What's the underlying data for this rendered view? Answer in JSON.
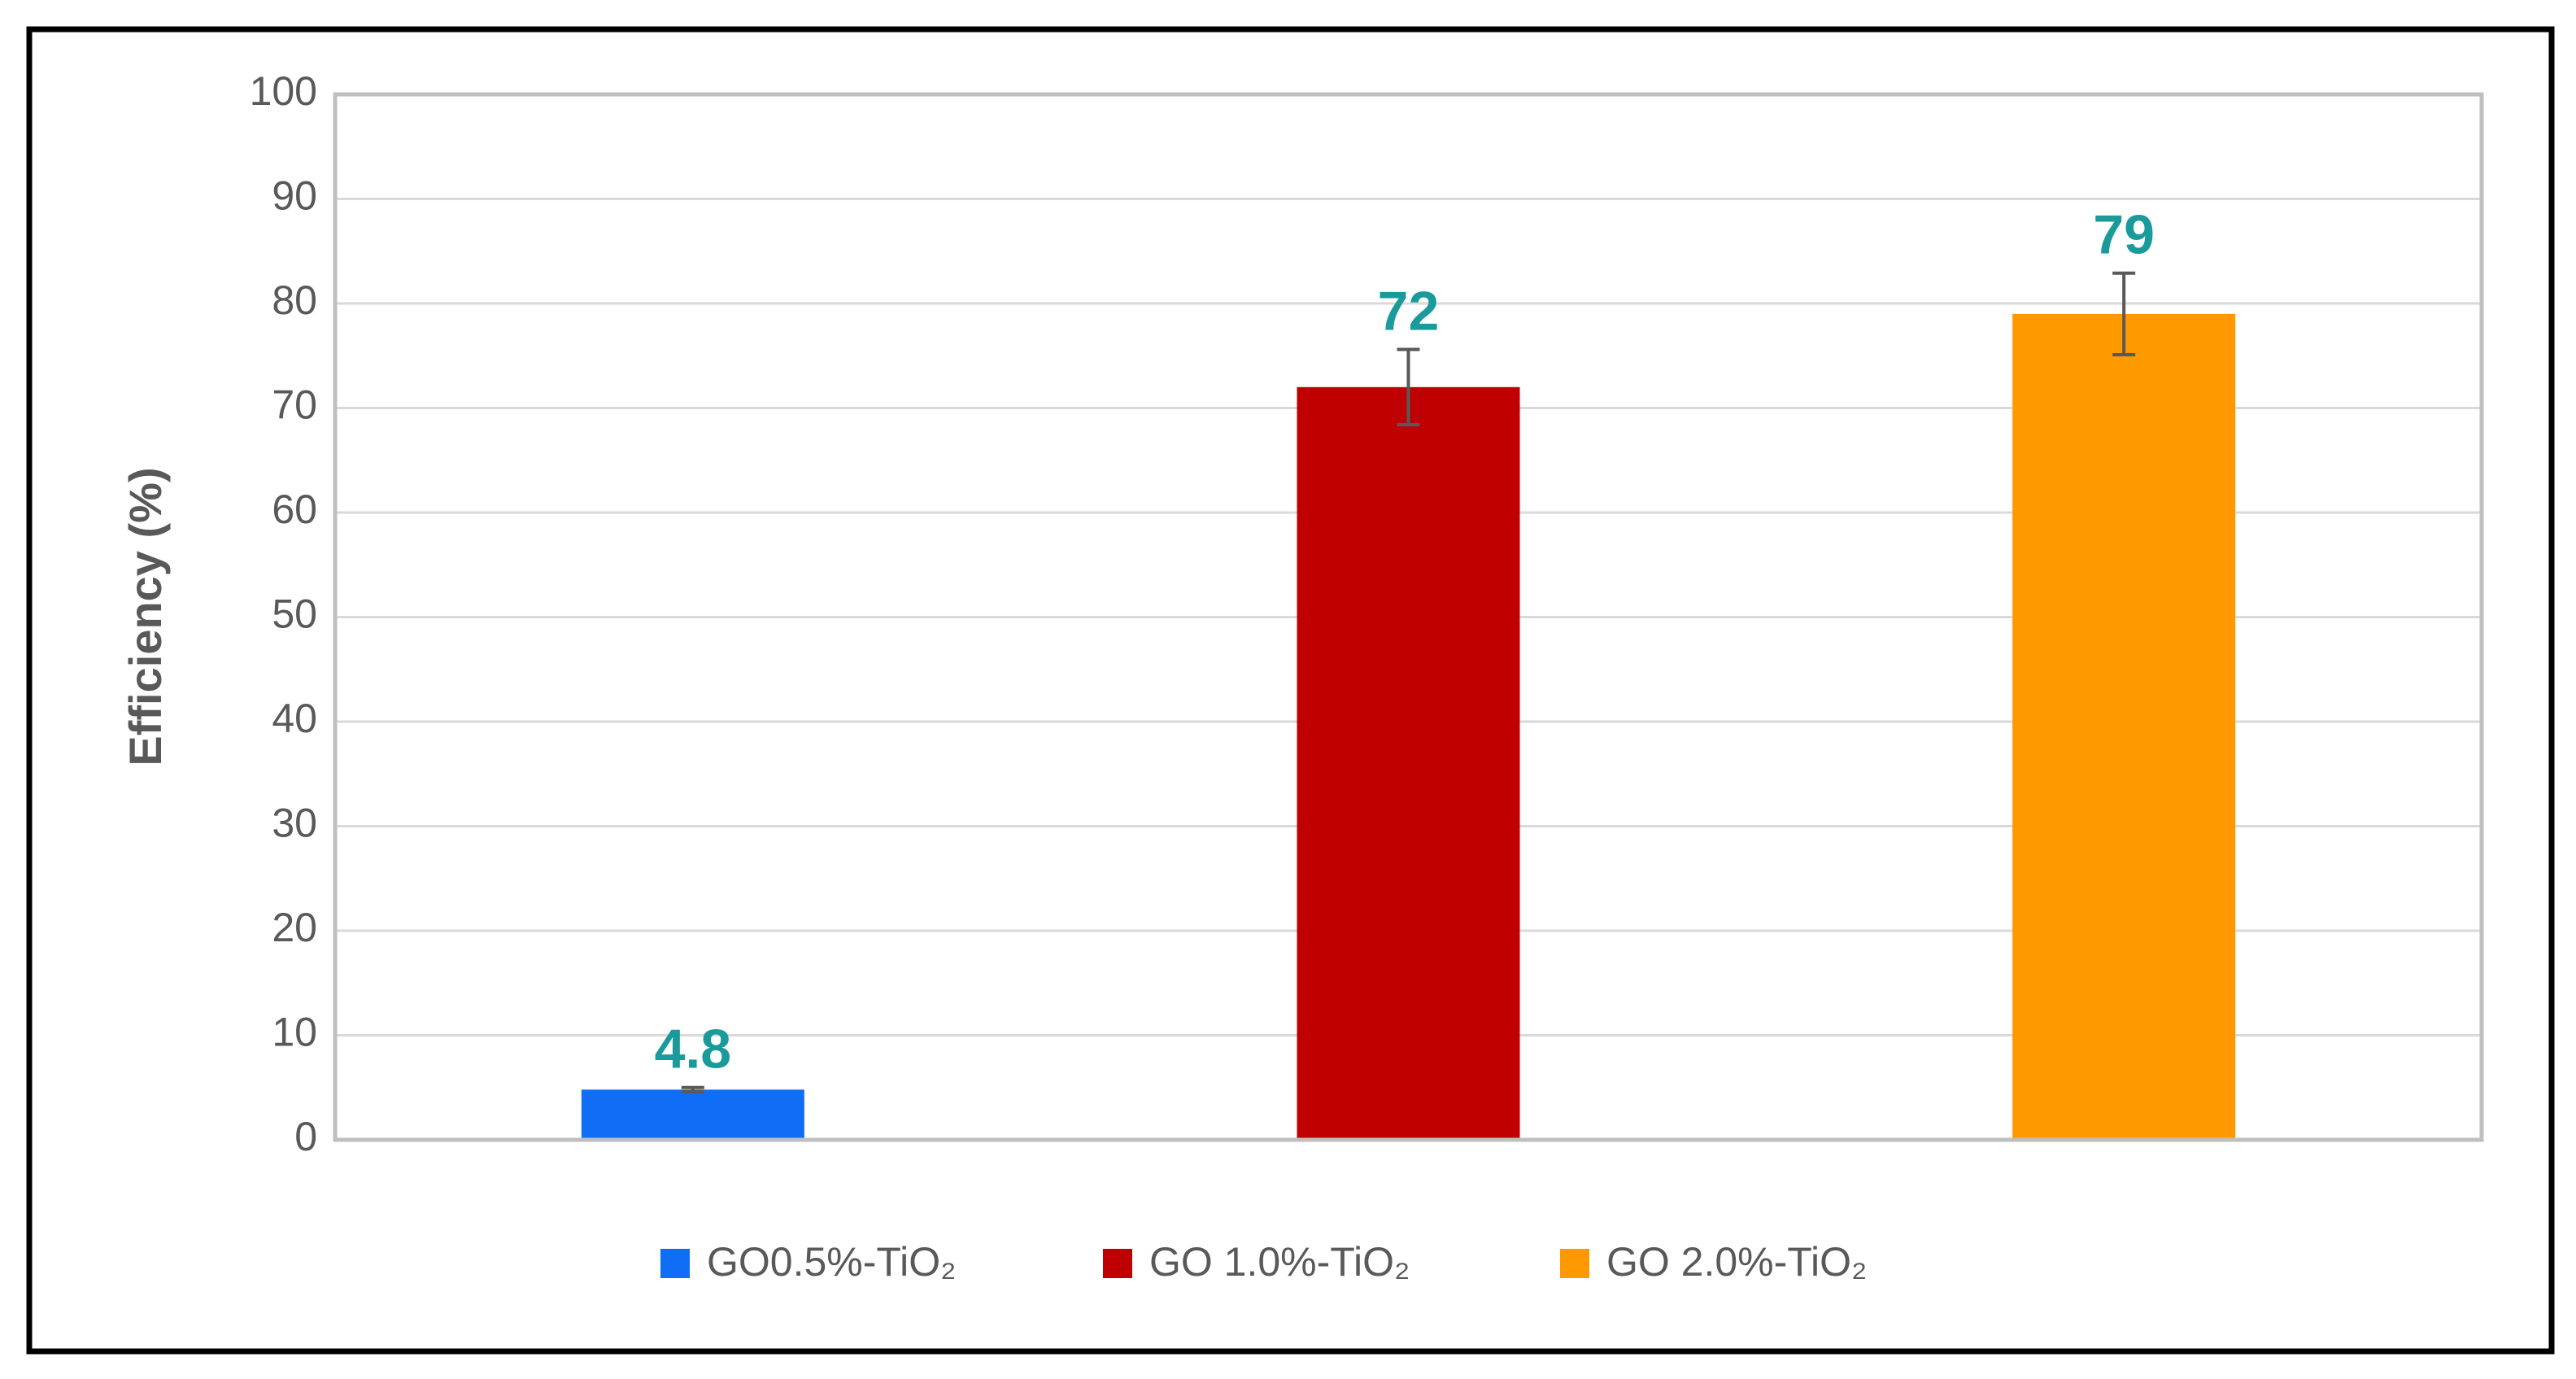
{
  "chart_data": {
    "type": "bar",
    "y_label": "Efficiency (%)",
    "series": [
      {
        "name": "GO0.5%-TiO₂",
        "color": "#0f6ef5",
        "values": [
          4.8
        ],
        "errors": [
          0.2
        ]
      },
      {
        "name": "GO 1.0%-TiO₂",
        "color": "#c00000",
        "values": [
          72
        ],
        "errors": [
          3.6
        ]
      },
      {
        "name": "GO 2.0%-TiO₂",
        "color": "#ff9900",
        "values": [
          79
        ],
        "errors": [
          3.9
        ]
      }
    ],
    "ylim": [
      0,
      100
    ],
    "yticks": [
      0,
      10,
      20,
      30,
      40,
      50,
      60,
      70,
      80,
      90,
      100
    ],
    "grid": true,
    "legend": "bottom",
    "label_color": "#1a9a9a",
    "error_color": "#595959"
  }
}
